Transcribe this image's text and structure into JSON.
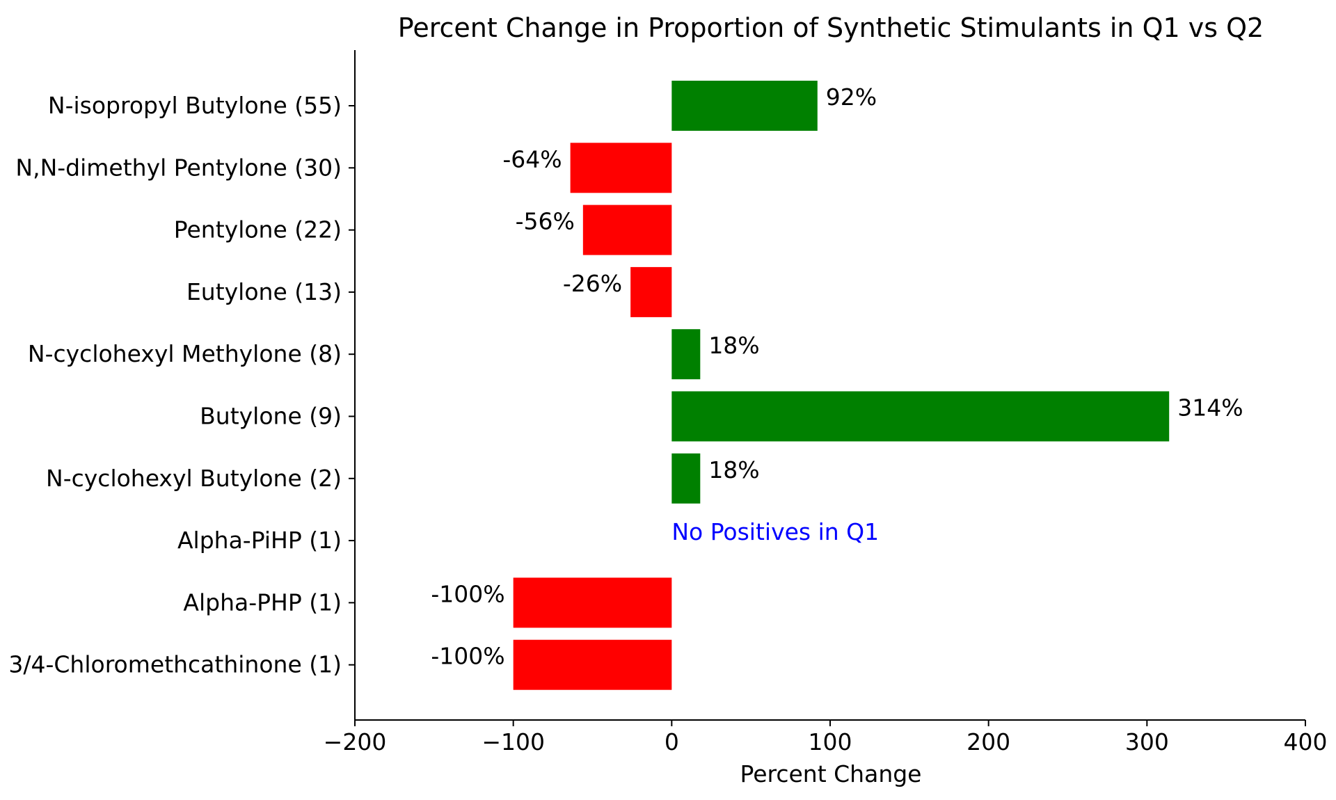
{
  "chart_data": {
    "type": "bar",
    "orientation": "horizontal",
    "title": "Percent Change in Proportion of Synthetic Stimulants in Q1 vs Q2",
    "xlabel": "Percent Change",
    "ylabel": "",
    "xlim": [
      -200,
      400
    ],
    "xticks": [
      -200,
      -100,
      0,
      100,
      200,
      300,
      400
    ],
    "xtick_labels": [
      "−200",
      "−100",
      "0",
      "100",
      "200",
      "300",
      "400"
    ],
    "grid": false,
    "categories": [
      "N-isopropyl Butylone (55)",
      "N,N-dimethyl Pentylone (30)",
      "Pentylone (22)",
      "Eutylone (13)",
      "N-cyclohexyl Methylone (8)",
      "Butylone (9)",
      "N-cyclohexyl Butylone (2)",
      "Alpha-PiHP (1)",
      "Alpha-PHP (1)",
      "3/4-Chloromethcathinone (1)"
    ],
    "values": [
      92,
      -64,
      -56,
      -26,
      18,
      314,
      18,
      null,
      -100,
      -100
    ],
    "value_labels": [
      "92%",
      "-64%",
      "-56%",
      "-26%",
      "18%",
      "314%",
      "18%",
      "",
      "-100%",
      "-100%"
    ],
    "annotations": [
      {
        "category": "Alpha-PiHP (1)",
        "text": "No Positives in Q1",
        "color": "#0000ff"
      }
    ],
    "colors": {
      "positive": "#008000",
      "negative": "#ff0000",
      "annotation": "#0000ff",
      "axis": "#000000",
      "text": "#000000"
    }
  }
}
